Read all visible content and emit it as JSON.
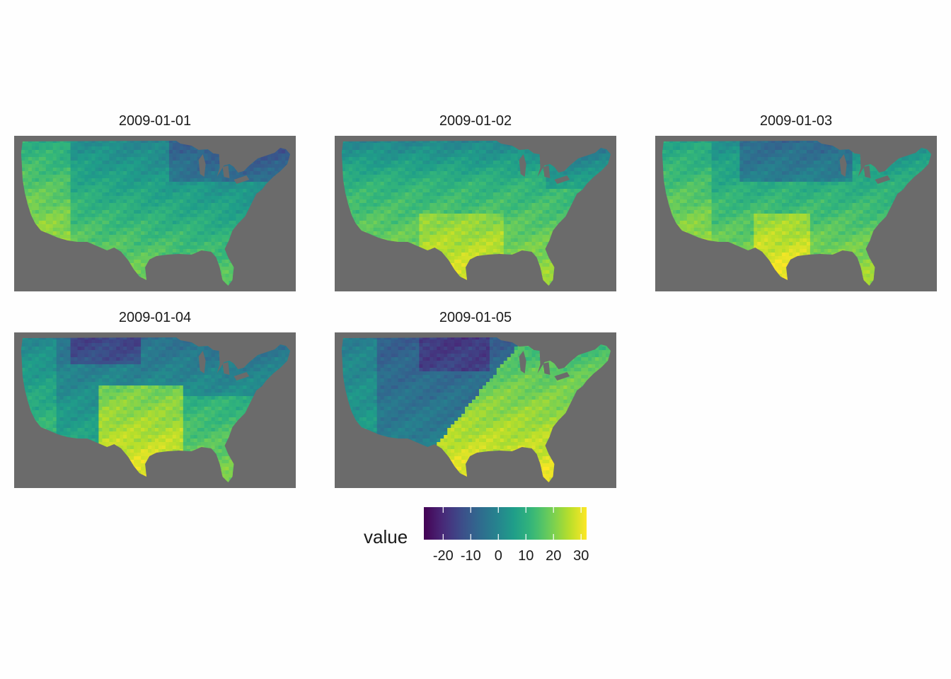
{
  "chart_data": {
    "type": "heatmap",
    "colormap": "viridis",
    "panel_background": "#6b6b6b",
    "facets": [
      {
        "title": "2009-01-01",
        "pattern": "day1"
      },
      {
        "title": "2009-01-02",
        "pattern": "day2"
      },
      {
        "title": "2009-01-03",
        "pattern": "day3"
      },
      {
        "title": "2009-01-04",
        "pattern": "day4"
      },
      {
        "title": "2009-01-05",
        "pattern": "day5"
      }
    ],
    "legend": {
      "title": "value",
      "range": [
        -27,
        32
      ],
      "ticks": [
        -20,
        -10,
        0,
        10,
        20,
        30
      ],
      "tick_labels": [
        "-20",
        "-10",
        "0",
        "10",
        "20",
        "30"
      ]
    }
  }
}
